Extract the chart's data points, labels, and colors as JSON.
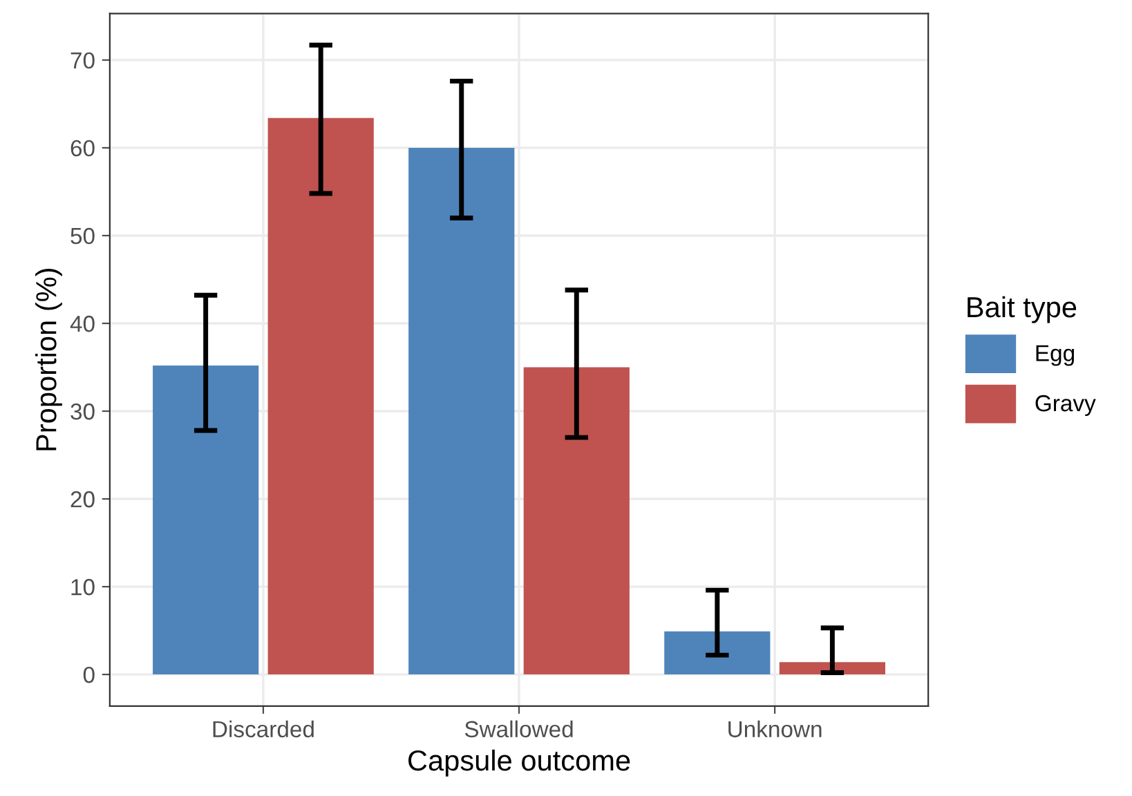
{
  "chart_data": {
    "type": "bar",
    "xlabel": "Capsule outcome",
    "ylabel": "Proportion (%)",
    "legend_title": "Bait type",
    "categories": [
      "Discarded",
      "Swallowed",
      "Unknown"
    ],
    "series": [
      {
        "name": "Egg",
        "color": "#4f84bb",
        "values": [
          35.2,
          60.0,
          4.9
        ],
        "errors": [
          [
            27.8,
            43.2
          ],
          [
            52.0,
            67.6
          ],
          [
            2.2,
            9.6
          ]
        ]
      },
      {
        "name": "Gravy",
        "color": "#c0534f",
        "values": [
          63.4,
          35.0,
          1.4
        ],
        "errors": [
          [
            54.8,
            71.7
          ],
          [
            27.0,
            43.8
          ],
          [
            0.2,
            5.3
          ]
        ]
      }
    ],
    "ylim": [
      -3.6,
      75.3
    ],
    "yticks": [
      0,
      10,
      20,
      30,
      40,
      50,
      60,
      70
    ],
    "grid": true,
    "legend": "right"
  }
}
